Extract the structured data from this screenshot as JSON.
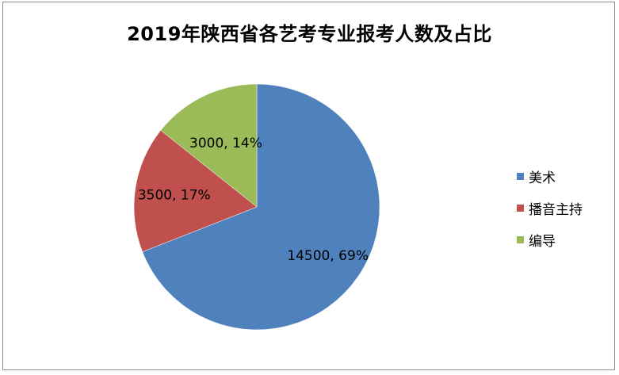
{
  "chart_data": {
    "type": "pie",
    "title": "2019年陕西省各艺考专业报考人数及占比",
    "categories": [
      "美术",
      "播音主持",
      "编导"
    ],
    "values": [
      14500,
      3500,
      3000
    ],
    "percent_labels": [
      "69%",
      "17%",
      "14%"
    ],
    "data_labels": [
      "14500, 69%",
      "3500, 17%",
      "3000, 14%"
    ],
    "colors": [
      "#4f81bd",
      "#c0504d",
      "#9bbb59"
    ],
    "legend_position": "right",
    "start_angle": "12 o'clock",
    "direction": "clockwise"
  }
}
